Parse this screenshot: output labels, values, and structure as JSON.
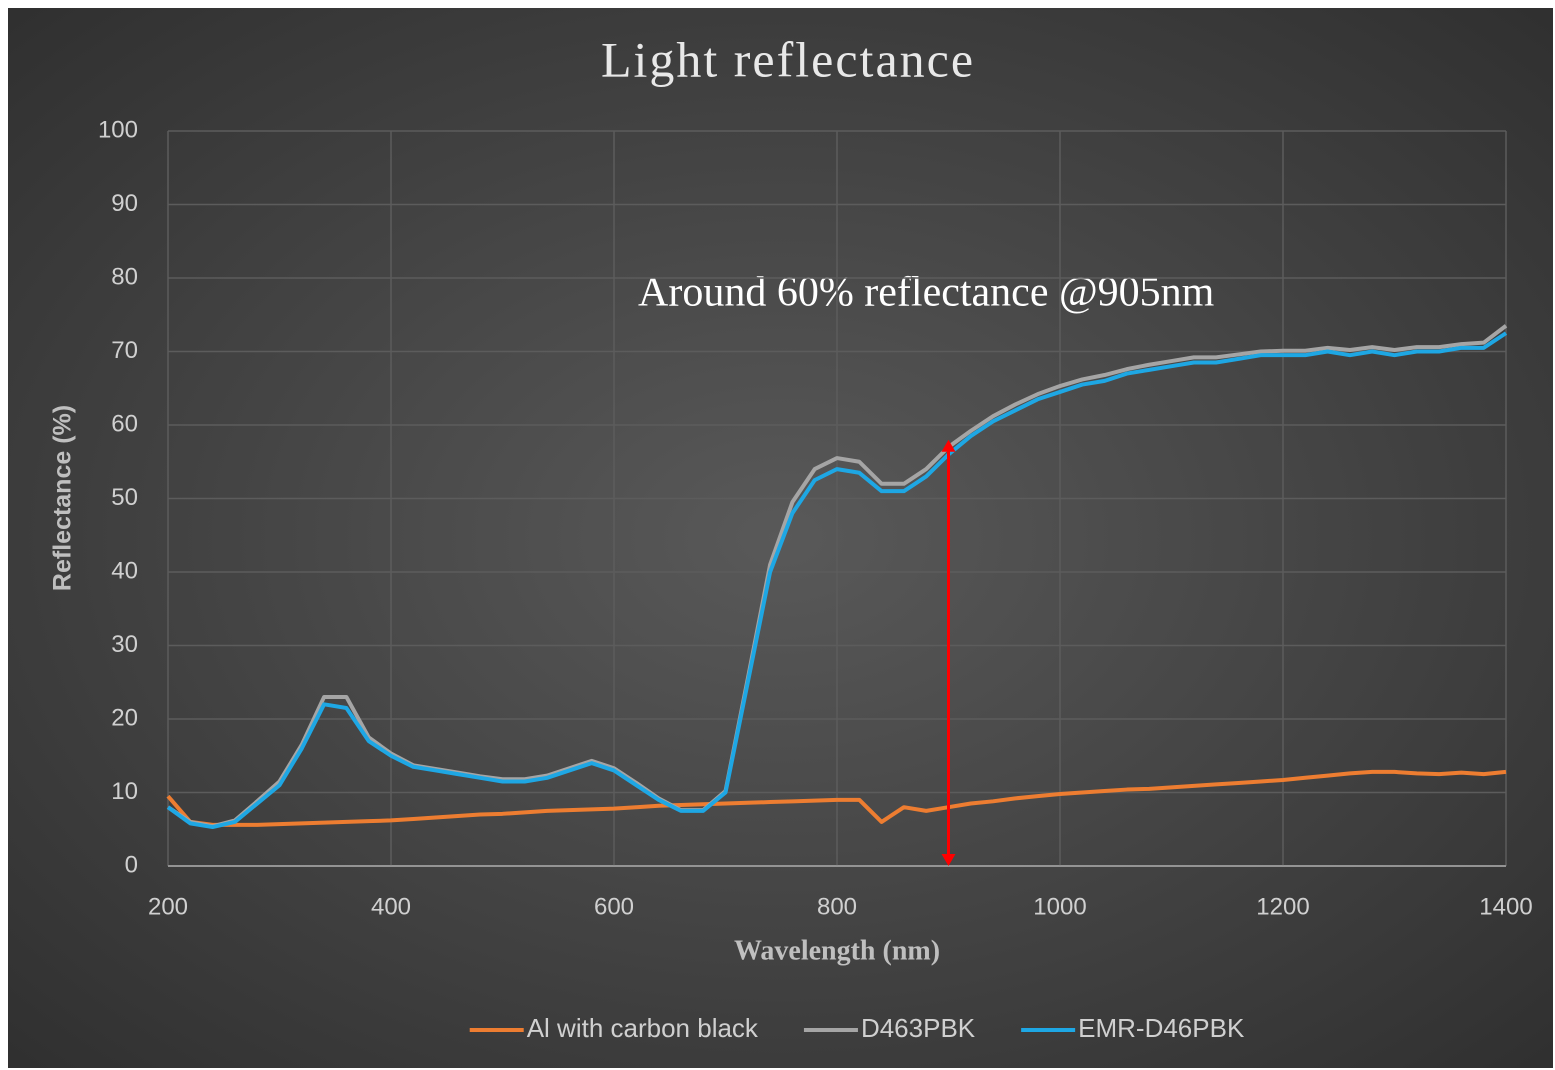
{
  "chart_data": {
    "type": "line",
    "title": "Light reflectance",
    "x_label": "Wavelength (nm)",
    "y_label": "Reflectance (%)",
    "annotation": "Around 60% reflectance @905nm",
    "annotation_arrow": {
      "x": 900,
      "y": [
        0,
        58
      ],
      "color": "#ff0000"
    },
    "x": [
      200,
      220,
      240,
      260,
      280,
      300,
      320,
      340,
      360,
      380,
      400,
      420,
      440,
      460,
      480,
      500,
      520,
      540,
      560,
      580,
      600,
      620,
      640,
      660,
      680,
      700,
      720,
      740,
      760,
      780,
      800,
      820,
      840,
      860,
      880,
      900,
      920,
      940,
      960,
      980,
      1000,
      1020,
      1040,
      1060,
      1080,
      1100,
      1120,
      1140,
      1160,
      1180,
      1200,
      1220,
      1240,
      1260,
      1280,
      1300,
      1320,
      1340,
      1360,
      1380,
      1400
    ],
    "series": [
      {
        "name": "Al with carbon black",
        "color": "#ed7d31",
        "values": [
          9.5,
          6,
          5.6,
          5.6,
          5.6,
          5.7,
          5.8,
          5.9,
          6,
          6.1,
          6.2,
          6.4,
          6.6,
          6.8,
          7,
          7.1,
          7.3,
          7.5,
          7.6,
          7.7,
          7.8,
          8,
          8.2,
          8.3,
          8.4,
          8.5,
          8.6,
          8.7,
          8.8,
          8.9,
          9,
          9,
          6,
          8,
          7.5,
          8,
          8.5,
          8.8,
          9.2,
          9.5,
          9.8,
          10,
          10.2,
          10.4,
          10.5,
          10.7,
          10.9,
          11.1,
          11.3,
          11.5,
          11.7,
          12,
          12.3,
          12.6,
          12.8,
          12.8,
          12.6,
          12.5,
          12.7,
          12.5,
          12.8
        ]
      },
      {
        "name": "D463PBK",
        "color": "#a5a5a5",
        "values": [
          8,
          6,
          5.4,
          6.2,
          8.8,
          11.5,
          16.5,
          23,
          23,
          17.5,
          15.3,
          13.7,
          13.2,
          12.7,
          12.2,
          11.8,
          11.8,
          12.3,
          13.3,
          14.3,
          13.3,
          11.3,
          9.2,
          7.6,
          7.6,
          10.2,
          25.5,
          41,
          49.5,
          54,
          55.5,
          55,
          52,
          52,
          54,
          57,
          59.2,
          61.2,
          62.8,
          64.2,
          65.3,
          66.2,
          66.8,
          67.6,
          68.2,
          68.7,
          69.2,
          69.2,
          69.6,
          70,
          70.1,
          70.1,
          70.5,
          70.2,
          70.6,
          70.2,
          70.6,
          70.6,
          71,
          71.2,
          73.5
        ]
      },
      {
        "name": "EMR-D46PBK",
        "color": "#1ea7e4",
        "values": [
          8,
          5.8,
          5.3,
          6,
          8.5,
          11,
          16,
          22,
          21.5,
          17,
          15,
          13.5,
          13,
          12.5,
          12,
          11.5,
          11.5,
          12,
          13,
          14,
          13,
          11,
          9,
          7.5,
          7.5,
          10,
          25,
          40,
          48,
          52.5,
          54,
          53.5,
          51,
          51,
          53,
          56,
          58.5,
          60.5,
          62,
          63.5,
          64.5,
          65.5,
          66,
          67,
          67.5,
          68,
          68.5,
          68.5,
          69,
          69.5,
          69.5,
          69.5,
          70,
          69.5,
          70,
          69.5,
          70,
          70,
          70.5,
          70.5,
          72.5
        ]
      }
    ],
    "xlim": [
      200,
      1400
    ],
    "xticks": [
      200,
      400,
      600,
      800,
      1000,
      1200,
      1400
    ],
    "ylim": [
      0,
      100
    ],
    "yticks": [
      0,
      10,
      20,
      30,
      40,
      50,
      60,
      70,
      80,
      90,
      100
    ],
    "grid": true,
    "legend": "bottom"
  }
}
